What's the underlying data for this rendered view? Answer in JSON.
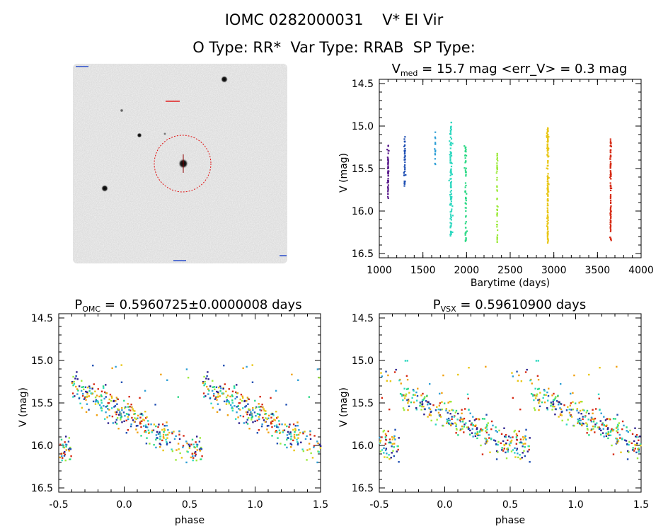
{
  "header": {
    "line1": "IOMC 0282000031    V* EI Vir",
    "line2": "O Type: RR*  Var Type: RRAB  SP Type:"
  },
  "image_panel": {
    "label": "image"
  },
  "chart_data": [
    {
      "id": "lightcurve",
      "type": "scatter",
      "title_main": "V",
      "title_sub": "med",
      "title_rest": " = 15.7 mag <err_V> = 0.3 mag",
      "xlabel": "Barytime (days)",
      "ylabel": "V (mag)",
      "xlim": [
        1000,
        4000
      ],
      "ylim": [
        16.55,
        14.45
      ],
      "xticks": [
        "1000",
        "1500",
        "2000",
        "2500",
        "3000",
        "3500",
        "4000"
      ],
      "yticks": [
        "14.5",
        "15.0",
        "15.5",
        "16.0",
        "16.5"
      ],
      "series": [
        {
          "x_center": 1100,
          "x_spread": 12,
          "y_min": 15.22,
          "y_max": 15.85,
          "count": 50,
          "color": "#5a1b8c"
        },
        {
          "x_center": 1290,
          "x_spread": 18,
          "y_min": 15.1,
          "y_max": 15.72,
          "count": 40,
          "color": "#1f4fb3"
        },
        {
          "x_center": 1640,
          "x_spread": 8,
          "y_min": 15.05,
          "y_max": 15.55,
          "count": 15,
          "color": "#2e9fd6"
        },
        {
          "x_center": 1820,
          "x_spread": 22,
          "y_min": 14.95,
          "y_max": 16.3,
          "count": 110,
          "color": "#2fd8c0"
        },
        {
          "x_center": 1990,
          "x_spread": 18,
          "y_min": 15.22,
          "y_max": 16.38,
          "count": 60,
          "color": "#2ad884"
        },
        {
          "x_center": 2350,
          "x_spread": 8,
          "y_min": 15.3,
          "y_max": 16.4,
          "count": 50,
          "color": "#9cea3a"
        },
        {
          "x_center": 2930,
          "x_spread": 14,
          "y_min": 15.02,
          "y_max": 16.38,
          "count": 130,
          "color": "#e8c614"
        },
        {
          "x_center": 3650,
          "x_spread": 10,
          "y_min": 15.15,
          "y_max": 16.35,
          "count": 90,
          "color": "#d62a14"
        }
      ]
    },
    {
      "id": "phase_omc",
      "type": "scatter",
      "title_main": "P",
      "title_sub": "OMC",
      "title_rest": " = 0.5960725±0.0000008 days",
      "xlabel": "phase",
      "ylabel": "V (mag)",
      "xlim": [
        -0.5,
        1.5
      ],
      "ylim": [
        16.55,
        14.45
      ],
      "xticks": [
        "-0.5",
        "0.0",
        "0.5",
        "1.0",
        "1.5"
      ],
      "yticks": [
        "14.5",
        "15.0",
        "15.5",
        "16.0",
        "16.5"
      ],
      "curve": {
        "max_phase": 0.6,
        "bright": 15.35,
        "faint": 16.05
      },
      "colors": [
        "#2a1f8c",
        "#1f4fb3",
        "#2e9fd6",
        "#2fd8c0",
        "#2ad884",
        "#9cea3a",
        "#e8c614",
        "#f0a010",
        "#d62a14"
      ]
    },
    {
      "id": "phase_vsx",
      "type": "scatter",
      "title_main": "P",
      "title_sub": "VSX",
      "title_rest": " = 0.59610900 days",
      "xlabel": "phase",
      "ylabel": "V (mag)",
      "xlim": [
        -0.5,
        1.5
      ],
      "ylim": [
        16.55,
        14.45
      ],
      "xticks": [
        "-0.5",
        "0.0",
        "0.5",
        "1.0",
        "1.5"
      ],
      "yticks": [
        "14.5",
        "15.0",
        "15.5",
        "16.0",
        "16.5"
      ],
      "curve": {
        "max_phase": 0.65,
        "bright": 15.45,
        "faint": 16.0
      },
      "colors": [
        "#2a1f8c",
        "#1f4fb3",
        "#2e9fd6",
        "#2fd8c0",
        "#2ad884",
        "#9cea3a",
        "#e8c614",
        "#f0a010",
        "#d62a14"
      ]
    }
  ]
}
